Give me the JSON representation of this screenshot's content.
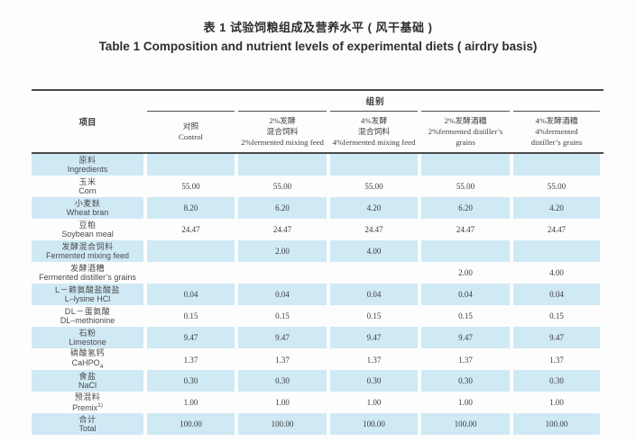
{
  "title": {
    "chinese": "表 1 试验饲粮组成及营养水平 ( 风干基础 )",
    "english": "Table 1 Composition and nutrient levels of experimental diets ( airdry basis)"
  },
  "table": {
    "item_label": "项目",
    "group_label": "组别",
    "shaded_row_color": "#cfe9f5",
    "columns": [
      {
        "lines": [
          "对照",
          "Control"
        ]
      },
      {
        "lines": [
          "2%发酵",
          "混合饲料",
          "2%fermented mixing feed"
        ]
      },
      {
        "lines": [
          "4%发酵",
          "混合饲料",
          "4%fermented mixing feed"
        ]
      },
      {
        "lines": [
          "2%发酵酒糟",
          "2%fermented distiller’s",
          "grains"
        ]
      },
      {
        "lines": [
          "4%发酵酒糟",
          "4%fermented",
          "distiller’s grains"
        ]
      }
    ],
    "rows": [
      {
        "cn": "原料",
        "en": "Ingredients",
        "shaded": true,
        "values": [
          "",
          "",
          "",
          "",
          ""
        ]
      },
      {
        "cn": "玉米",
        "en": "Corn",
        "shaded": false,
        "values": [
          "55.00",
          "55.00",
          "55.00",
          "55.00",
          "55.00"
        ]
      },
      {
        "cn": "小麦麸",
        "en": "Wheat bran",
        "shaded": true,
        "values": [
          "8.20",
          "6.20",
          "4.20",
          "6.20",
          "4.20"
        ]
      },
      {
        "cn": "豆粕",
        "en": "Soybean meal",
        "shaded": false,
        "values": [
          "24.47",
          "24.47",
          "24.47",
          "24.47",
          "24.47"
        ]
      },
      {
        "cn": "发酵混合饲料",
        "en": "Fermented mixing feed",
        "shaded": true,
        "values": [
          "",
          "2.00",
          "4.00",
          "",
          ""
        ]
      },
      {
        "cn": "发酵酒糟",
        "en": "Fermented distiller’s grains",
        "shaded": false,
        "values": [
          "",
          "",
          "",
          "2.00",
          "4.00"
        ]
      },
      {
        "cn": "L－赖氨酸盐酸盐",
        "en": "L–lysine HCl",
        "shaded": true,
        "values": [
          "0.04",
          "0.04",
          "0.04",
          "0.04",
          "0.04"
        ]
      },
      {
        "cn": "DL－蛋氨酸",
        "en": "DL–methionine",
        "shaded": false,
        "values": [
          "0.15",
          "0.15",
          "0.15",
          "0.15",
          "0.15"
        ]
      },
      {
        "cn": "石粉",
        "en": "Limestone",
        "shaded": true,
        "values": [
          "9.47",
          "9.47",
          "9.47",
          "9.47",
          "9.47"
        ]
      },
      {
        "cn": "磷酸氢钙",
        "en": "CaHPO",
        "en_sub": "4",
        "shaded": false,
        "values": [
          "1.37",
          "1.37",
          "1.37",
          "1.37",
          "1.37"
        ]
      },
      {
        "cn": "食盐",
        "en": "NaCl",
        "shaded": true,
        "values": [
          "0.30",
          "0.30",
          "0.30",
          "0.30",
          "0.30"
        ]
      },
      {
        "cn": "预混料",
        "en": "Premix",
        "en_sup": "1)",
        "shaded": false,
        "values": [
          "1.00",
          "1.00",
          "1.00",
          "1.00",
          "1.00"
        ]
      },
      {
        "cn": "合计",
        "en": "Total",
        "shaded": true,
        "values": [
          "100.00",
          "100.00",
          "100.00",
          "100.00",
          "100.00"
        ]
      }
    ]
  }
}
